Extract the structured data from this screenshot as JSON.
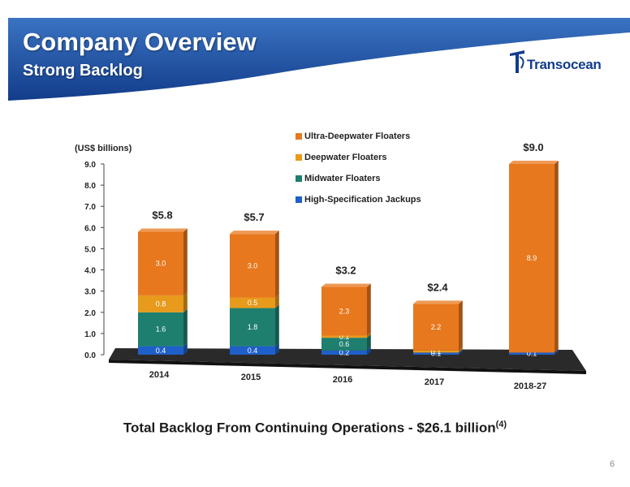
{
  "header": {
    "title": "Company Overview",
    "subtitle": "Strong Backlog",
    "logo_text": "Transocean"
  },
  "colors": {
    "banner_dark": "#123c8a",
    "banner_light": "#2f66b8",
    "ultra_deepwater": "#e8781e",
    "deepwater": "#e89a1c",
    "midwater": "#1e7f6e",
    "jackups": "#1f5fc9"
  },
  "chart_data": {
    "type": "bar",
    "stacked": true,
    "three_d": true,
    "unit_label": "(US$ billions)",
    "ylim": [
      0,
      9
    ],
    "yticks": [
      "0.0",
      "1.0",
      "2.0",
      "3.0",
      "4.0",
      "5.0",
      "6.0",
      "7.0",
      "8.0",
      "9.0"
    ],
    "grid": false,
    "legend_position": "top",
    "categories": [
      "2014",
      "2015",
      "2016",
      "2017",
      "2018-27"
    ],
    "totals": [
      "$5.8",
      "$5.7",
      "$3.2",
      "$2.4",
      "$9.0"
    ],
    "series": [
      {
        "name": "High-Specification Jackups",
        "values": [
          0.4,
          0.4,
          0.2,
          0.1,
          0.1
        ],
        "labels": [
          "0.4",
          "0.4",
          "0.2",
          "0.1",
          "0.1"
        ]
      },
      {
        "name": "Midwater Floaters",
        "values": [
          1.6,
          1.8,
          0.6,
          0.0,
          0.0
        ],
        "labels": [
          "1.6",
          "1.8",
          "0.6",
          "",
          ""
        ]
      },
      {
        "name": "Deepwater Floaters",
        "values": [
          0.8,
          0.5,
          0.1,
          0.1,
          0.0
        ],
        "labels": [
          "0.8",
          "0.5",
          "0.1",
          "0.1",
          ""
        ]
      },
      {
        "name": "Ultra-Deepwater Floaters",
        "values": [
          3.0,
          3.0,
          2.3,
          2.2,
          8.9
        ],
        "labels": [
          "3.0",
          "3.0",
          "2.3",
          "2.2",
          "8.9"
        ]
      }
    ]
  },
  "footer": {
    "text": "Total Backlog From Continuing Operations - $26.1 billion",
    "footnote": "(4)"
  },
  "page_number": "6"
}
